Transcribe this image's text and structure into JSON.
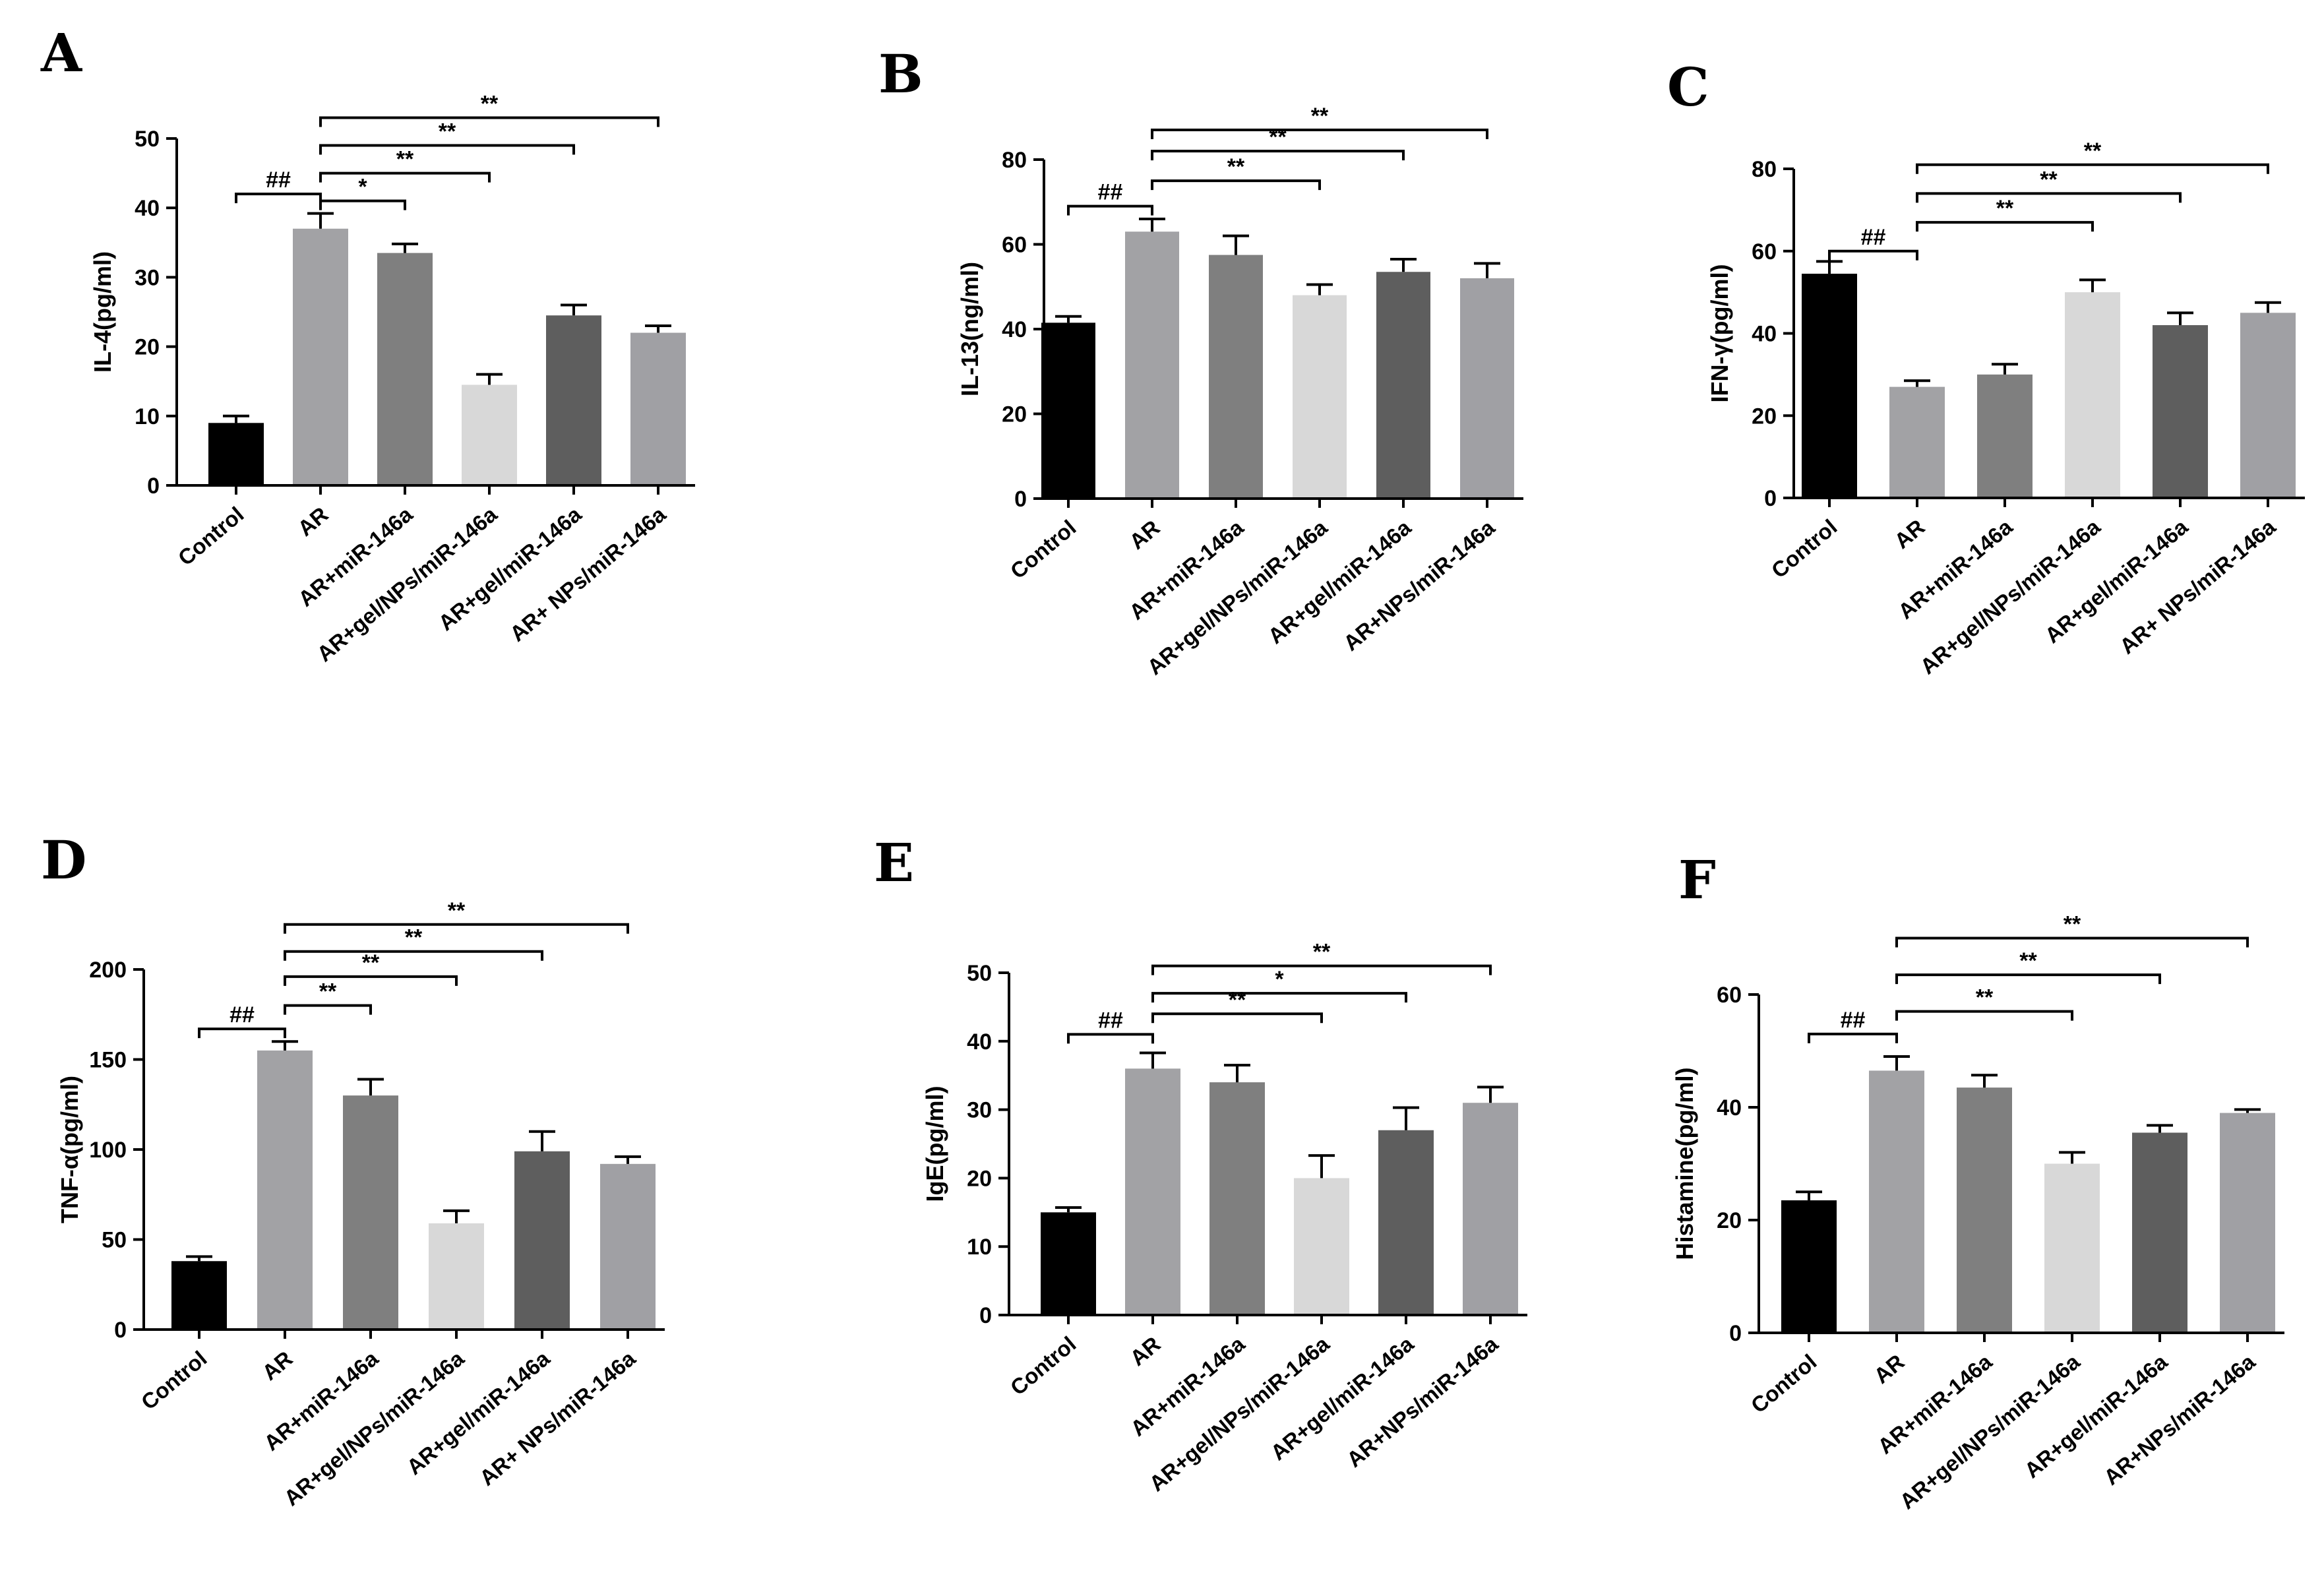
{
  "chart_data": [
    {
      "type": "bar",
      "panel": "A",
      "ylabel": "IL-4(pg/ml)",
      "ylim": [
        0,
        50
      ],
      "yticks": [
        0,
        10,
        20,
        30,
        40,
        50
      ],
      "categories": [
        "Control",
        "AR",
        "AR+miR-146a",
        "AR+gel/NPs/miR-146a",
        "AR+gel/miR-146a",
        "AR+ NPs/miR-146a"
      ],
      "values": [
        9,
        37,
        33.5,
        14.5,
        24.5,
        22
      ],
      "errors": [
        1,
        2.2,
        1.3,
        1.5,
        1.5,
        1
      ],
      "colors": [
        "#000000",
        "#a2a2a5",
        "#7f7f7f",
        "#d8d8d8",
        "#5e5e5e",
        "#a0a0a4"
      ],
      "comparisons": [
        {
          "from": 0,
          "to": 1,
          "label": "##",
          "y": 42
        },
        {
          "from": 1,
          "to": 2,
          "label": "*",
          "y": 41
        },
        {
          "from": 1,
          "to": 3,
          "label": "**",
          "y": 45
        },
        {
          "from": 1,
          "to": 4,
          "label": "**",
          "y": 49
        },
        {
          "from": 1,
          "to": 5,
          "label": "**",
          "y": 53
        }
      ]
    },
    {
      "type": "bar",
      "panel": "B",
      "ylabel": "IL-13(ng/ml)",
      "ylim": [
        0,
        80
      ],
      "yticks": [
        0,
        20,
        40,
        60,
        80
      ],
      "categories": [
        "Control",
        "AR",
        "AR+miR-146a",
        "AR+gel/NPs/miR-146a",
        "AR+gel/miR-146a",
        "AR+NPs/miR-146a"
      ],
      "values": [
        41.5,
        63,
        57.5,
        48,
        53.5,
        52
      ],
      "errors": [
        1.5,
        3,
        4.5,
        2.5,
        3,
        3.5
      ],
      "colors": [
        "#000000",
        "#a2a2a5",
        "#7f7f7f",
        "#d8d8d8",
        "#5e5e5e",
        "#a0a0a4"
      ],
      "comparisons": [
        {
          "from": 0,
          "to": 1,
          "label": "##",
          "y": 69
        },
        {
          "from": 1,
          "to": 3,
          "label": "**",
          "y": 75
        },
        {
          "from": 1,
          "to": 4,
          "label": "**",
          "y": 82
        },
        {
          "from": 1,
          "to": 5,
          "label": "**",
          "y": 87
        }
      ]
    },
    {
      "type": "bar",
      "panel": "C",
      "ylabel": "IFN-γ(pg/ml)",
      "ylim": [
        0,
        80
      ],
      "yticks": [
        0,
        20,
        40,
        60,
        80
      ],
      "categories": [
        "Control",
        "AR",
        "AR+miR-146a",
        "AR+gel/NPs/miR-146a",
        "AR+gel/miR-146a",
        "AR+ NPs/miR-146a"
      ],
      "values": [
        54.5,
        27,
        30,
        50,
        42,
        45
      ],
      "errors": [
        3,
        1.5,
        2.5,
        3,
        3,
        2.5
      ],
      "colors": [
        "#000000",
        "#a2a2a5",
        "#7f7f7f",
        "#d8d8d8",
        "#5e5e5e",
        "#a0a0a4"
      ],
      "comparisons": [
        {
          "from": 0,
          "to": 1,
          "label": "##",
          "y": 60
        },
        {
          "from": 1,
          "to": 3,
          "label": "**",
          "y": 67
        },
        {
          "from": 1,
          "to": 4,
          "label": "**",
          "y": 74
        },
        {
          "from": 1,
          "to": 5,
          "label": "**",
          "y": 81
        }
      ]
    },
    {
      "type": "bar",
      "panel": "D",
      "ylabel": "TNF-α(pg/ml)",
      "ylim": [
        0,
        200
      ],
      "yticks": [
        0,
        50,
        100,
        150,
        200
      ],
      "categories": [
        "Control",
        "AR",
        "AR+miR-146a",
        "AR+gel/NPs/miR-146a",
        "AR+gel/miR-146a",
        "AR+ NPs/miR-146a"
      ],
      "values": [
        38,
        155,
        130,
        59,
        99,
        92
      ],
      "errors": [
        2.5,
        5,
        9,
        7,
        11,
        4
      ],
      "colors": [
        "#000000",
        "#a2a2a5",
        "#7f7f7f",
        "#d8d8d8",
        "#5e5e5e",
        "#a0a0a4"
      ],
      "comparisons": [
        {
          "from": 0,
          "to": 1,
          "label": "##",
          "y": 167
        },
        {
          "from": 1,
          "to": 2,
          "label": "**",
          "y": 180
        },
        {
          "from": 1,
          "to": 3,
          "label": "**",
          "y": 196
        },
        {
          "from": 1,
          "to": 4,
          "label": "**",
          "y": 210
        },
        {
          "from": 1,
          "to": 5,
          "label": "**",
          "y": 225
        }
      ]
    },
    {
      "type": "bar",
      "panel": "E",
      "ylabel": "IgE(pg/ml)",
      "ylim": [
        0,
        50
      ],
      "yticks": [
        0,
        10,
        20,
        30,
        40,
        50
      ],
      "categories": [
        "Control",
        "AR",
        "AR+miR-146a",
        "AR+gel/NPs/miR-146a",
        "AR+gel/miR-146a",
        "AR+NPs/miR-146a"
      ],
      "values": [
        15,
        36,
        34,
        20,
        27,
        31
      ],
      "errors": [
        0.7,
        2.3,
        2.5,
        3.3,
        3.3,
        2.3
      ],
      "colors": [
        "#000000",
        "#a2a2a5",
        "#7f7f7f",
        "#d8d8d8",
        "#5e5e5e",
        "#a0a0a4"
      ],
      "comparisons": [
        {
          "from": 0,
          "to": 1,
          "label": "##",
          "y": 41
        },
        {
          "from": 1,
          "to": 3,
          "label": "**",
          "y": 44
        },
        {
          "from": 1,
          "to": 4,
          "label": "*",
          "y": 47
        },
        {
          "from": 1,
          "to": 5,
          "label": "**",
          "y": 51
        }
      ]
    },
    {
      "type": "bar",
      "panel": "F",
      "ylabel": "Histamine(pg/ml)",
      "ylim": [
        0,
        60
      ],
      "yticks": [
        0,
        20,
        40,
        60
      ],
      "categories": [
        "Control",
        "AR",
        "AR+miR-146a",
        "AR+gel/NPs/miR-146a",
        "AR+gel/miR-146a",
        "AR+NPs/miR-146a"
      ],
      "values": [
        23.5,
        46.5,
        43.5,
        30,
        35.5,
        39
      ],
      "errors": [
        1.5,
        2.5,
        2.2,
        2,
        1.3,
        0.6
      ],
      "colors": [
        "#000000",
        "#a2a2a5",
        "#7f7f7f",
        "#d8d8d8",
        "#5e5e5e",
        "#a0a0a4"
      ],
      "comparisons": [
        {
          "from": 0,
          "to": 1,
          "label": "##",
          "y": 53
        },
        {
          "from": 1,
          "to": 3,
          "label": "**",
          "y": 57
        },
        {
          "from": 1,
          "to": 4,
          "label": "**",
          "y": 63.5
        },
        {
          "from": 1,
          "to": 5,
          "label": "**",
          "y": 70
        }
      ]
    }
  ]
}
